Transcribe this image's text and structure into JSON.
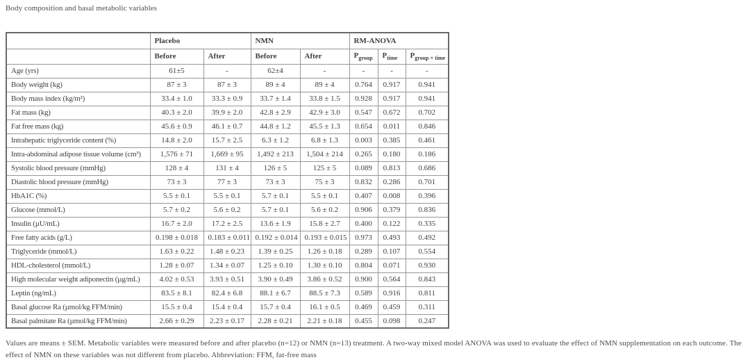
{
  "page": {
    "title": "Body composition and basal metabolic variables",
    "footnote": "Values are means ± SEM. Metabolic variables were measured before and after placebo (n=12) or NMN (n=13) treatment. A two-way mixed model ANOVA was used to evaluate the effect of NMN supplementation on each outcome. The effect of NMN on these variables was not different from placebo. Abbreviation: FFM, fat-free mass"
  },
  "table": {
    "groups": [
      "Placebo",
      "NMN",
      "RM-ANOVA"
    ],
    "sub_headers": [
      "Before",
      "After",
      "Before",
      "After"
    ],
    "p_headers": [
      {
        "base": "P",
        "sub": "group"
      },
      {
        "base": "P",
        "sub": "time"
      },
      {
        "base": "P",
        "sub": "group × time"
      }
    ],
    "rows": [
      [
        "Age (yrs)",
        "61±5",
        "-",
        "62±4",
        "-",
        "-",
        "-",
        "-"
      ],
      [
        "Body weight (kg)",
        "87 ± 3",
        "87 ± 3",
        "89 ± 4",
        "89 ± 4",
        "0.764",
        "0.917",
        "0.941"
      ],
      [
        "Body mass index (kg/m²)",
        "33.4 ± 1.0",
        "33.3 ± 0.9",
        "33.7 ± 1.4",
        "33.8 ± 1.5",
        "0.928",
        "0.917",
        "0.941"
      ],
      [
        "Fat mass (kg)",
        "40.3 ± 2.0",
        "39.9 ± 2.0",
        "42.8 ± 2.9",
        "42.9 ± 3.0",
        "0.547",
        "0.672",
        "0.702"
      ],
      [
        "Fat free mass (kg)",
        "45.6 ± 0.9",
        "46.1 ± 0.7",
        "44.8 ± 1.2",
        "45.5 ± 1.3",
        "0.654",
        "0.011",
        "0.846"
      ],
      [
        "Intrahepatic triglyceride content (%)",
        "14.8 ± 2.0",
        "15.7 ± 2.5",
        "6.3 ± 1.2",
        "6.8 ± 1.3",
        "0.003",
        "0.385",
        "0.461"
      ],
      [
        "Intra-abdominal adipose tissue volume (cm³)",
        "1,576 ± 71",
        "1,669 ± 95",
        "1,492 ± 213",
        "1,504 ± 214",
        "0.265",
        "0.180",
        "0.186"
      ],
      [
        "Systolic blood pressure (mmHg)",
        "128 ± 4",
        "131 ± 4",
        "126 ± 5",
        "125 ± 5",
        "0.089",
        "0.813",
        "0.686"
      ],
      [
        "Diastolic blood pressure (mmHg)",
        "73 ± 3",
        "77 ± 3",
        "73 ± 3",
        "75 ± 3",
        "0.832",
        "0.286",
        "0.701"
      ],
      [
        "HbA1C (%)",
        "5.5 ± 0.1",
        "5.5 ± 0.1",
        "5.7 ± 0.1",
        "5.5 ± 0.1",
        "0.407",
        "0.008",
        "0.396"
      ],
      [
        "Glucose (mmol/L)",
        "5.7 ± 0.2",
        "5.6 ± 0.2",
        "5.7 ± 0.1",
        "5.6 ± 0.2",
        "0.906",
        "0.379",
        "0.836"
      ],
      [
        "Insulin (µU/mL)",
        "16.7 ± 2.0",
        "17.2 ± 2.5",
        "13.6 ± 1.9",
        "15.8 ± 2.7",
        "0.400",
        "0.122",
        "0.335"
      ],
      [
        "Free fatty acids (g/L)",
        "0.198 ± 0.018",
        "0.183 ± 0.011",
        "0.192 ± 0.014",
        "0.193 ± 0.015",
        "0.973",
        "0.493",
        "0.492"
      ],
      [
        "Triglyceride (mmol/L)",
        "1.63 ± 0.22",
        "1.48 ± 0.23",
        "1.39 ± 0.25",
        "1.26 ± 0.18",
        "0.289",
        "0.107",
        "0.554"
      ],
      [
        "HDL-cholesterol (mmol/L)",
        "1.28 ± 0.07",
        "1.34 ± 0.07",
        "1.25 ± 0.10",
        "1.30 ± 0.10",
        "0.804",
        "0.071",
        "0.930"
      ],
      [
        "High molecular weight adiponectin (µg/mL)",
        "4.02 ± 0.53",
        "3.93 ± 0.51",
        "3.90 ± 0.49",
        "3.86 ± 0.52",
        "0.900",
        "0.564",
        "0.843"
      ],
      [
        "Leptin (ng/mL)",
        "83.5 ± 8.1",
        "82.4 ± 6.8",
        "88.1 ± 6.7",
        "88.5 ± 7.3",
        "0.589",
        "0.916",
        "0.811"
      ],
      [
        "Basal glucose Ra (µmol/kg FFM/min)",
        "15.5 ± 0.4",
        "15.4 ± 0.4",
        "15.7 ± 0.4",
        "16.1 ± 0.5",
        "0.469",
        "0.459",
        "0.311"
      ],
      [
        "Basal palmitate Ra (µmol/kg FFM/min)",
        "2.66 ± 0.29",
        "2.23 ± 0.17",
        "2.28 ± 0.21",
        "2.21 ± 0.18",
        "0.455",
        "0.098",
        "0.247"
      ]
    ]
  },
  "colors": {
    "background": "#ffffff",
    "text": "#3f3f3f",
    "caption_text": "#4b4b4b",
    "inner_border": "#979797",
    "outer_border": "#6a6a6a"
  }
}
